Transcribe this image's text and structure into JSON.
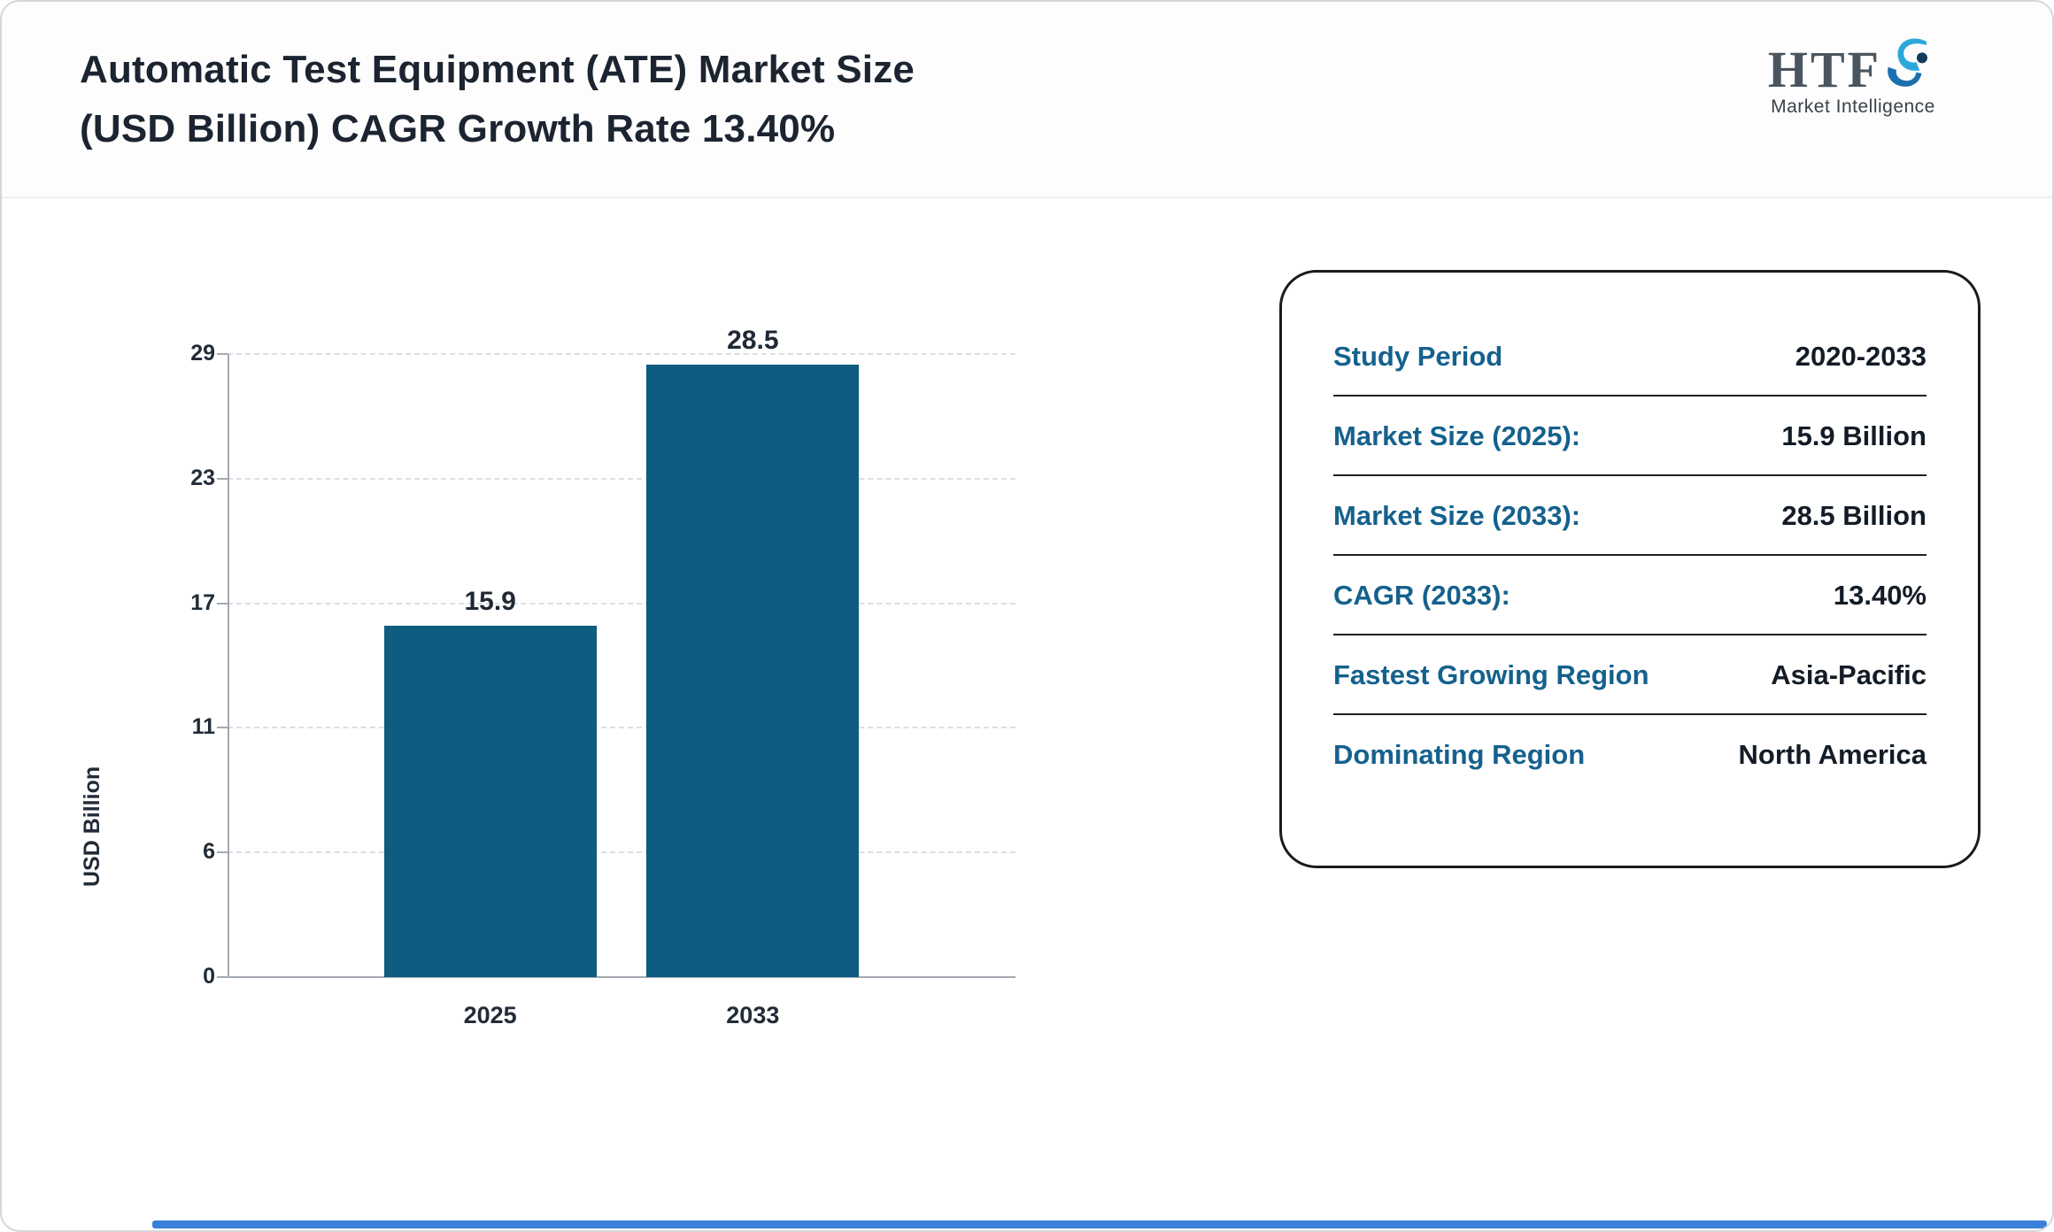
{
  "page": {
    "title_line1": "Automatic Test Equipment (ATE) Market Size",
    "title_line2": "(USD Billion) CAGR Growth Rate 13.40%"
  },
  "logo": {
    "text": "HTF",
    "subtext": "Market Intelligence"
  },
  "chart_data": {
    "type": "bar",
    "title": "Automatic Test Equipment (ATE) Market Size (USD Billion) CAGR Growth Rate 13.40%",
    "categories": [
      "2025",
      "2033"
    ],
    "values": [
      15.9,
      28.5
    ],
    "value_labels": [
      "15.9",
      "28.5"
    ],
    "xlabel": "",
    "ylabel": "USD Billion",
    "ylim": [
      0,
      29
    ],
    "yticks": [
      0,
      6,
      11,
      17,
      23,
      29
    ],
    "grid": "horizontal-dashed",
    "legend": "none",
    "bar_color": "#0e5c80"
  },
  "info_card": {
    "rows": [
      {
        "label": "Study Period",
        "value": "2020-2033"
      },
      {
        "label": "Market Size (2025):",
        "value": "15.9 Billion"
      },
      {
        "label": "Market Size (2033):",
        "value": "28.5 Billion"
      },
      {
        "label": "CAGR (2033):",
        "value": "13.40%"
      },
      {
        "label": "Fastest Growing Region",
        "value": "Asia-Pacific"
      },
      {
        "label": "Dominating Region",
        "value": "North America"
      }
    ]
  },
  "colors": {
    "bar": "#0e5c80",
    "card_label": "#15618d",
    "dark_text": "#1b2430",
    "accent_strip": "#3a7fd8"
  }
}
